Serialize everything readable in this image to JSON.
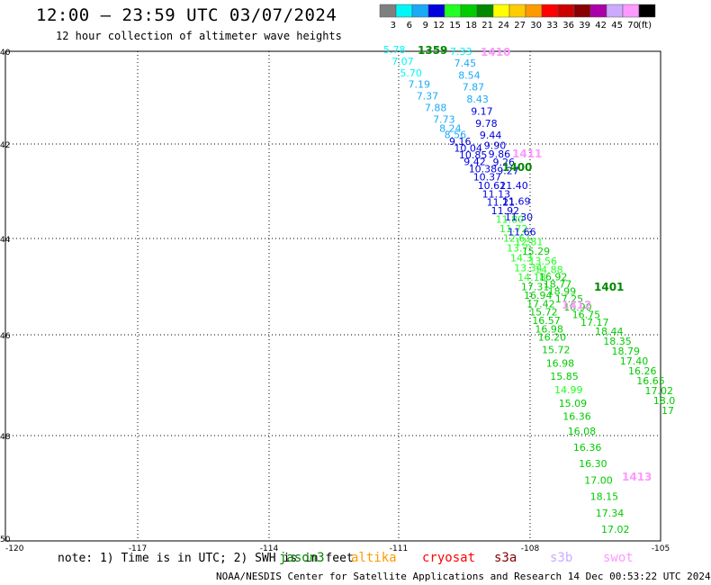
{
  "title": "12:00 — 23:59 UTC 03/07/2024",
  "subtitle": "12 hour collection of altimeter wave heights",
  "scale": {
    "labels": [
      "3",
      "6",
      "9",
      "12",
      "15",
      "18",
      "21",
      "24",
      "27",
      "30",
      "33",
      "36",
      "39",
      "42",
      "45",
      "70",
      "(ft)"
    ],
    "colors": [
      "#7f7f7f",
      "#00f7f7",
      "#1aaaf7",
      "#0000dd",
      "#22ff22",
      "#00cc00",
      "#008800",
      "#ffff00",
      "#ffcc00",
      "#ff9900",
      "#ff0000",
      "#cc0000",
      "#880000",
      "#aa00aa",
      "#ccaaff",
      "#ff99ff",
      "#000000"
    ]
  },
  "axes": {
    "lat_labels": [
      "40",
      "42",
      "44",
      "46",
      "48",
      "50"
    ],
    "lon_labels": [
      "-120",
      "-117",
      "-114",
      "-111",
      "-108",
      "-105"
    ]
  },
  "passes": [
    {
      "label": "1359",
      "color": "#008800"
    },
    {
      "label": "1410",
      "color": "#ff99ff"
    },
    {
      "label": "1411",
      "color": "#ff99ff"
    },
    {
      "label": "1400",
      "color": "#008800"
    },
    {
      "label": "1401",
      "color": "#008800"
    },
    {
      "label": "1412",
      "color": "#ff99ff"
    },
    {
      "label": "1413",
      "color": "#ff99ff"
    }
  ],
  "track_a": {
    "values": [
      "5.78",
      "7.07",
      "5.70",
      "7.19",
      "7.37",
      "7.88",
      "7.73",
      "8.24",
      "8.56",
      "9.16",
      "10.04",
      "10.85",
      "9.42",
      "10.38",
      "10.37",
      "10.62",
      "11.13",
      "11.21",
      "11.92",
      "11.80",
      "11.72",
      "12.61",
      "13.7",
      "14.3",
      "13.34",
      "14.18",
      "17.31",
      "16.94",
      "17.42",
      "15.72",
      "16.57",
      "16.98",
      "16.20",
      "15.72",
      "16.98",
      "15.85",
      "14.99",
      "15.09",
      "16.36",
      "16.08",
      "16.36",
      "16.30",
      "17.00",
      "18.15",
      "17.34",
      "17.02"
    ],
    "colors": [
      "#00f7f7",
      "#00f7f7",
      "#00f7f7",
      "#1aaaf7",
      "#1aaaf7",
      "#1aaaf7",
      "#1aaaf7",
      "#1aaaf7",
      "#1aaaf7",
      "#0000dd",
      "#0000dd",
      "#0000dd",
      "#0000dd",
      "#0000dd",
      "#0000dd",
      "#0000dd",
      "#0000dd",
      "#0000dd",
      "#0000dd",
      "#22ff22",
      "#22ff22",
      "#22ff22",
      "#22ff22",
      "#22ff22",
      "#22ff22",
      "#22ff22",
      "#00cc00",
      "#00cc00",
      "#00cc00",
      "#00cc00",
      "#00cc00",
      "#00cc00",
      "#00cc00",
      "#00cc00",
      "#00cc00",
      "#00cc00",
      "#22ff22",
      "#00cc00",
      "#00cc00",
      "#00cc00",
      "#00cc00",
      "#00cc00",
      "#00cc00",
      "#00cc00",
      "#00cc00",
      "#00cc00"
    ]
  },
  "track_b": {
    "values": [
      "7.33",
      "7.45",
      "8.54",
      "7.87",
      "8.43",
      "9.17",
      "9.78",
      "9.44",
      "9.90",
      "9.86",
      "9.26",
      "9.27",
      "11.40",
      "11.69",
      "11.30",
      "11.66",
      "12.81",
      "15.29",
      "13.56",
      "14.88",
      "16.92",
      "18.77",
      "18.99",
      "17.25",
      "16.90",
      "16.75",
      "17.17"
    ],
    "colors": [
      "#00f7f7",
      "#1aaaf7",
      "#1aaaf7",
      "#1aaaf7",
      "#1aaaf7",
      "#0000dd",
      "#0000dd",
      "#0000dd",
      "#0000dd",
      "#0000dd",
      "#0000dd",
      "#0000dd",
      "#0000dd",
      "#0000dd",
      "#0000dd",
      "#0000dd",
      "#22ff22",
      "#00cc00",
      "#22ff22",
      "#22ff22",
      "#00cc00",
      "#00cc00",
      "#00cc00",
      "#00cc00",
      "#00cc00",
      "#00cc00",
      "#00cc00"
    ]
  },
  "track_c": {
    "values": [
      "18.44",
      "18.35",
      "18.79",
      "17.40",
      "16.26",
      "16.65",
      "17.02",
      "18.0",
      "17"
    ],
    "colors": [
      "#00cc00",
      "#00cc00",
      "#00cc00",
      "#00cc00",
      "#00cc00",
      "#00cc00",
      "#00cc00",
      "#00cc00",
      "#00cc00"
    ]
  },
  "note": "note:  1) Time is in UTC; 2) SWH is in feet",
  "satellites": [
    {
      "name": "jason3",
      "color": "#008800"
    },
    {
      "name": "altika",
      "color": "#ff9900"
    },
    {
      "name": "cryosat",
      "color": "#ff0000"
    },
    {
      "name": "s3a",
      "color": "#880000"
    },
    {
      "name": "s3b",
      "color": "#ccaaff"
    },
    {
      "name": "swot",
      "color": "#ff99ff"
    }
  ],
  "credit": "NOAA/NESDIS Center for Satellite Applications and Research   14 Dec 00:53:22 UTC 2024"
}
